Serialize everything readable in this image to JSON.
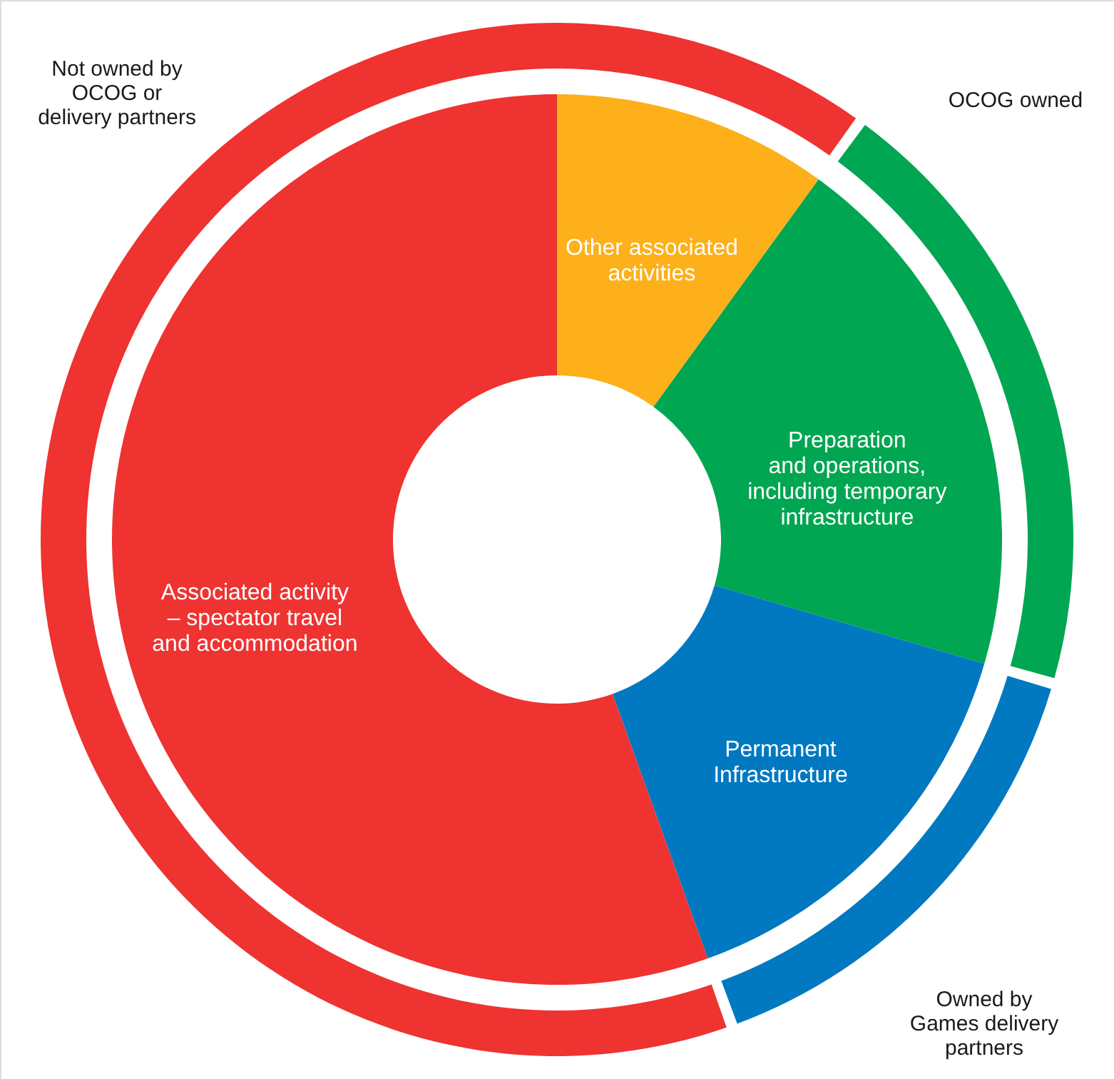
{
  "chart_data": {
    "type": "donut",
    "categories": [
      "Preparation\nand operations,\nincluding temporary\ninfrastructure",
      "Permanent\nInfrastructure",
      "Associated activity\n– spectator travel\nand accommodation",
      "Other associated\nactivities"
    ],
    "series": [
      {
        "values": [
          19.5,
          15,
          55.5,
          10
        ],
        "colors": [
          "#00a651",
          "#0079c1",
          "#ee3331",
          "#ee3331"
        ]
      },
      {
        "values": [
          19.5,
          15,
          55.5,
          10
        ],
        "colors": [
          "#00a651",
          "#0079c1",
          "#ee3331",
          "#fdb01a"
        ]
      }
    ],
    "annotations": [
      "OCOG owned",
      "Owned by\nGames delivery\npartners",
      "Not owned by\nOCOG or\ndelivery partners"
    ]
  }
}
